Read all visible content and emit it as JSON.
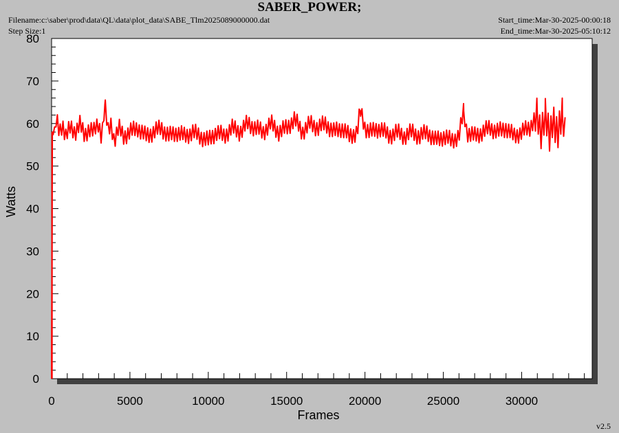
{
  "header": {
    "title": "SABER_POWER;",
    "filename": "Filename:c:\\saber\\prod\\data\\QL\\data\\plot_data\\SABE_Tlm2025089000000.dat",
    "step_size": "Step Size:1",
    "start_time": "Start_time:Mar-30-2025-00:00:18",
    "end_time": "End_time:Mar-30-2025-05:10:12"
  },
  "version": "v2.5",
  "colors": {
    "series": "#ff0000",
    "background": "#c0c0c0",
    "plot_bg": "#ffffff",
    "shadow": "#404040"
  },
  "chart_data": {
    "type": "line",
    "xlabel": "Frames",
    "ylabel": "Watts",
    "xlim": [
      0,
      34500
    ],
    "ylim": [
      0,
      80
    ],
    "xticks": [
      "0",
      "5000",
      "10000",
      "15000",
      "20000",
      "25000",
      "30000"
    ],
    "yticks": [
      "0",
      "10",
      "20",
      "30",
      "40",
      "50",
      "60",
      "70",
      "80"
    ],
    "grid": false,
    "series": [
      {
        "x": [
          0,
          50,
          100,
          200,
          300,
          500,
          700,
          900,
          1200,
          1500,
          1800,
          2100,
          2400,
          2700,
          3000,
          3200,
          3400,
          3600,
          3800,
          4000,
          4300,
          4600,
          5000,
          5500,
          6000,
          6500,
          7000,
          7500,
          8000,
          8500,
          9000,
          9500,
          10000,
          10500,
          11000,
          11500,
          12000,
          12500,
          13000,
          13500,
          14000,
          14500,
          15000,
          15500,
          16000,
          16500,
          17000,
          17500,
          18000,
          18500,
          19000,
          19500,
          19700,
          20000,
          20500,
          21000,
          21500,
          22000,
          22500,
          23000,
          23500,
          24000,
          24500,
          25000,
          25500,
          26000,
          26300,
          26500,
          27000,
          27500,
          28000,
          28500,
          29000,
          29500,
          30000,
          30500,
          30800,
          31000,
          31200,
          31500,
          31800,
          32000,
          32300,
          32600,
          32800
        ],
        "y": [
          0,
          58,
          59,
          57,
          61,
          58,
          60,
          57,
          59,
          58,
          60,
          57,
          59,
          58,
          60,
          57,
          64.5,
          58,
          60,
          56,
          59,
          57,
          58,
          59,
          57,
          58,
          59,
          57,
          58,
          57,
          58,
          57,
          56,
          58,
          57,
          59,
          58,
          60,
          59,
          58,
          60,
          58,
          59,
          61,
          58,
          60,
          59,
          60,
          58,
          59,
          57,
          58,
          63,
          59,
          58,
          59,
          57,
          58,
          57,
          58,
          57,
          58,
          56,
          57,
          56,
          57,
          63,
          58,
          57,
          58,
          59,
          58,
          59,
          57,
          58,
          59,
          61,
          62,
          57,
          63,
          56,
          61,
          58,
          62,
          57
        ]
      }
    ]
  }
}
